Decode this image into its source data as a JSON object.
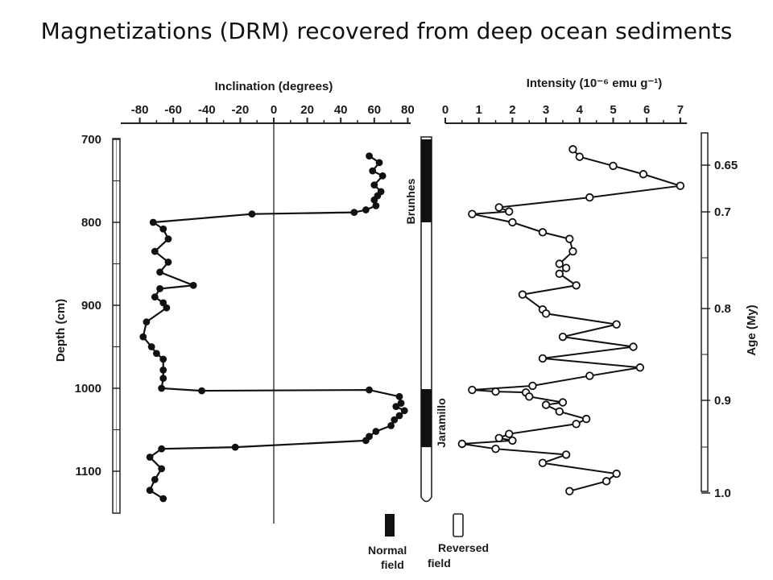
{
  "page": {
    "title": "Magnetizations (DRM) recovered from deep ocean sediments"
  },
  "chart_data": [
    {
      "type": "line",
      "panel": "inclination",
      "xlabel": "Inclination (degrees)",
      "ylabel": "Depth (cm)",
      "x_ticks": [
        "-80",
        "-60",
        "-40",
        "-20",
        "0",
        "20",
        "40",
        "60",
        "80"
      ],
      "y_ticks": [
        "700",
        "800",
        "900",
        "1000",
        "1100"
      ],
      "xlim": [
        -82,
        82
      ],
      "ylim": [
        700,
        1145
      ],
      "marker": "filled-circle",
      "series": [
        {
          "points": [
            [
              57,
              720
            ],
            [
              63,
              728
            ],
            [
              59,
              738
            ],
            [
              65,
              744
            ],
            [
              60,
              755
            ],
            [
              64,
              763
            ],
            [
              62,
              768
            ],
            [
              60,
              773
            ],
            [
              61,
              780
            ],
            [
              55,
              785
            ],
            [
              48,
              788
            ],
            [
              -13,
              790
            ],
            [
              -72,
              800
            ],
            [
              -66,
              808
            ],
            [
              -63,
              820
            ],
            [
              -71,
              835
            ],
            [
              -63,
              848
            ],
            [
              -68,
              860
            ],
            [
              -48,
              876
            ],
            [
              -68,
              880
            ],
            [
              -71,
              890
            ],
            [
              -66,
              897
            ],
            [
              -64,
              903
            ],
            [
              -76,
              920
            ],
            [
              -78,
              938
            ],
            [
              -73,
              950
            ],
            [
              -70,
              958
            ],
            [
              -66,
              965
            ],
            [
              -66,
              978
            ],
            [
              -66,
              988
            ],
            [
              -67,
              1000
            ],
            [
              -43,
              1003
            ],
            [
              57,
              1002
            ],
            [
              75,
              1010
            ],
            [
              76,
              1018
            ],
            [
              73,
              1022
            ],
            [
              78,
              1027
            ],
            [
              75,
              1033
            ],
            [
              72,
              1038
            ],
            [
              70,
              1045
            ],
            [
              61,
              1052
            ],
            [
              57,
              1058
            ],
            [
              55,
              1063
            ],
            [
              -23,
              1071
            ],
            [
              -67,
              1073
            ],
            [
              -74,
              1083
            ],
            [
              -67,
              1097
            ],
            [
              -71,
              1110
            ],
            [
              -74,
              1123
            ],
            [
              -66,
              1133
            ]
          ]
        }
      ]
    },
    {
      "type": "line",
      "panel": "intensity",
      "xlabel": "Intensity (10⁻⁶ emu g⁻¹)",
      "x_ticks": [
        "0",
        "1",
        "2",
        "3",
        "4",
        "5",
        "6",
        "7"
      ],
      "xlim": [
        0,
        7.2
      ],
      "ylim": [
        700,
        1145
      ],
      "marker": "open-circle",
      "series": [
        {
          "points": [
            [
              3.8,
              712
            ],
            [
              4.0,
              721
            ],
            [
              5.0,
              732
            ],
            [
              5.9,
              742
            ],
            [
              7.0,
              756
            ],
            [
              4.3,
              770
            ],
            [
              1.6,
              782
            ],
            [
              1.9,
              787
            ],
            [
              0.8,
              790
            ],
            [
              2.0,
              800
            ],
            [
              2.9,
              812
            ],
            [
              3.7,
              820
            ],
            [
              3.8,
              835
            ],
            [
              3.4,
              850
            ],
            [
              3.6,
              855
            ],
            [
              3.4,
              862
            ],
            [
              3.9,
              876
            ],
            [
              2.3,
              887
            ],
            [
              2.9,
              905
            ],
            [
              3.0,
              910
            ],
            [
              5.1,
              923
            ],
            [
              3.5,
              938
            ],
            [
              5.6,
              950
            ],
            [
              2.9,
              964
            ],
            [
              5.8,
              975
            ],
            [
              4.3,
              985
            ],
            [
              2.6,
              997
            ],
            [
              0.8,
              1002
            ],
            [
              1.5,
              1004
            ],
            [
              2.4,
              1005
            ],
            [
              2.5,
              1010
            ],
            [
              3.5,
              1017
            ],
            [
              3.0,
              1020
            ],
            [
              3.4,
              1028
            ],
            [
              4.2,
              1037
            ],
            [
              3.9,
              1043
            ],
            [
              1.9,
              1055
            ],
            [
              1.6,
              1060
            ],
            [
              2.0,
              1063
            ],
            [
              0.5,
              1067
            ],
            [
              1.5,
              1073
            ],
            [
              3.6,
              1080
            ],
            [
              2.9,
              1090
            ],
            [
              5.1,
              1103
            ],
            [
              4.8,
              1112
            ],
            [
              3.7,
              1124
            ]
          ]
        }
      ]
    }
  ],
  "age_axis": {
    "label": "Age (My)",
    "ticks": [
      "0.65",
      "0.7",
      "0.8",
      "0.9",
      "1.0"
    ]
  },
  "polarity": {
    "labels": [
      "Brunhes",
      "Jaramillo"
    ],
    "normal_intervals": [
      [
        700,
        800
      ],
      [
        1001,
        1071
      ]
    ]
  },
  "legend": {
    "normal": "Normal field",
    "reversed": "Reversed field"
  }
}
